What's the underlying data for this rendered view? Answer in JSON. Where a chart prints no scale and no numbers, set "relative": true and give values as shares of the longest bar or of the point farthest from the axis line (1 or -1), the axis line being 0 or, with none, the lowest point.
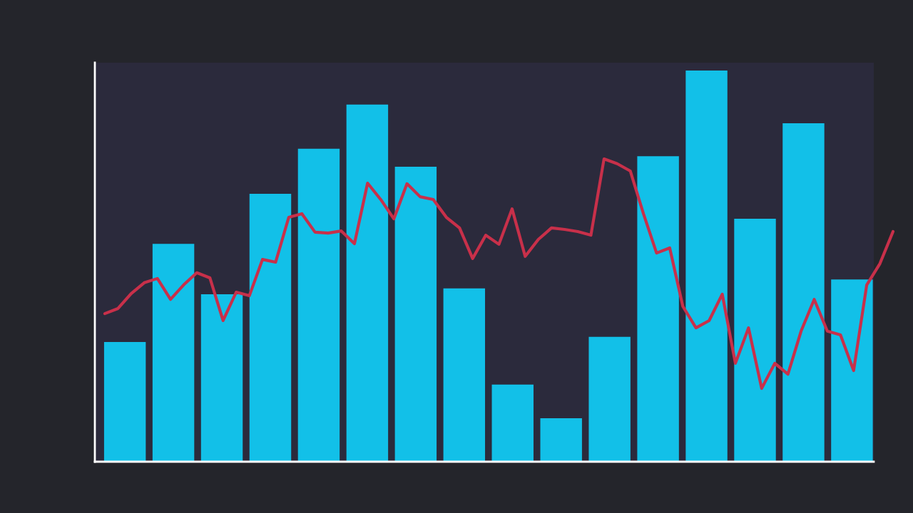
{
  "chart_data": [
    {
      "type": "bar",
      "relative": true,
      "grid": false,
      "color": "#12c0e8",
      "categories": [
        null,
        null,
        null,
        null,
        null,
        null,
        null,
        null,
        null,
        null,
        null,
        null,
        null,
        null,
        null,
        null
      ],
      "values": [
        0.306,
        0.557,
        0.428,
        0.685,
        0.8,
        0.913,
        0.754,
        0.443,
        0.197,
        0.111,
        0.319,
        0.781,
        1,
        0.621,
        0.865,
        0.466
      ]
    },
    {
      "type": "line",
      "relative": true,
      "grid": false,
      "color": "#c8304a",
      "marker": "none",
      "line_style": "solid",
      "categories": [
        null,
        null,
        null,
        null,
        null,
        null,
        null,
        null,
        null,
        null,
        null,
        null,
        null,
        null,
        null,
        null,
        null,
        null,
        null,
        null,
        null,
        null,
        null,
        null,
        null,
        null,
        null,
        null,
        null,
        null,
        null,
        null,
        null,
        null,
        null,
        null,
        null,
        null,
        null,
        null,
        null,
        null,
        null,
        null,
        null,
        null,
        null,
        null,
        null,
        null,
        null,
        null,
        null,
        null,
        null,
        null,
        null,
        null,
        null,
        null,
        null
      ],
      "values": [
        0.489,
        0.506,
        0.555,
        0.591,
        0.605,
        0.536,
        0.584,
        0.624,
        0.607,
        0.466,
        0.56,
        0.548,
        0.668,
        0.659,
        0.807,
        0.819,
        0.758,
        0.755,
        0.762,
        0.72,
        0.92,
        0.866,
        0.802,
        0.918,
        0.875,
        0.866,
        0.807,
        0.772,
        0.671,
        0.748,
        0.718,
        0.835,
        0.678,
        0.734,
        0.772,
        0.767,
        0.76,
        0.748,
        1,
        0.984,
        0.96,
        0.819,
        0.689,
        0.706,
        0.513,
        0.442,
        0.466,
        0.553,
        0.325,
        0.442,
        0.242,
        0.325,
        0.289,
        0.431,
        0.536,
        0.431,
        0.419,
        0.301,
        0.584,
        0.654,
        0.76
      ]
    }
  ]
}
